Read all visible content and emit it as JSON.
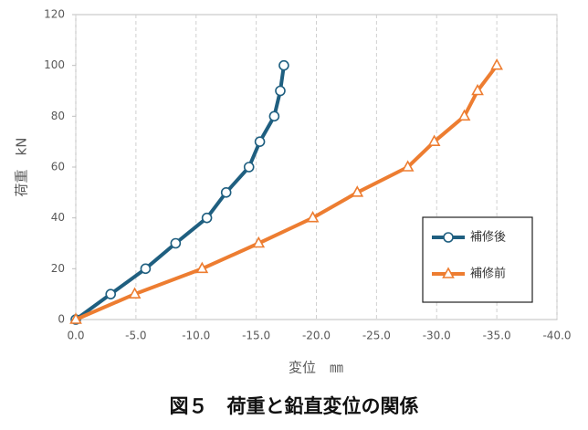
{
  "chart_data": {
    "type": "line",
    "caption": "図５　荷重と鉛直変位の関係",
    "x_label": "変位　㎜",
    "y_label": "荷重　kN",
    "xlim": [
      0,
      -40
    ],
    "xticks": [
      {
        "value": 0,
        "label": "0.0"
      },
      {
        "value": -5,
        "label": "-5.0"
      },
      {
        "value": -10,
        "label": "-10.0"
      },
      {
        "value": -15,
        "label": "-15.0"
      },
      {
        "value": -20,
        "label": "-20.0"
      },
      {
        "value": -25,
        "label": "-25.0"
      },
      {
        "value": -30,
        "label": "-30.0"
      },
      {
        "value": -35,
        "label": "-35.0"
      },
      {
        "value": -40,
        "label": "-40.0"
      }
    ],
    "ylim": [
      0,
      120
    ],
    "yticks": [
      0,
      20,
      40,
      60,
      80,
      100,
      120
    ],
    "grid": true,
    "legend_position": "right",
    "series": [
      {
        "name": "補修後",
        "color": "#1f5f80",
        "marker": "circle",
        "x": [
          0,
          -2.9,
          -5.8,
          -8.3,
          -10.9,
          -12.5,
          -14.4,
          -15.3,
          -16.5,
          -17.0,
          -17.3
        ],
        "values": [
          0,
          10,
          20,
          30,
          40,
          50,
          60,
          70,
          80,
          90,
          100
        ]
      },
      {
        "name": "補修前",
        "color": "#ed7d31",
        "marker": "triangle",
        "x": [
          0,
          -4.9,
          -10.5,
          -15.2,
          -19.7,
          -23.4,
          -27.6,
          -29.8,
          -32.3,
          -33.4,
          -35.0
        ],
        "values": [
          0,
          10,
          20,
          30,
          40,
          50,
          60,
          70,
          80,
          90,
          100
        ]
      }
    ]
  }
}
